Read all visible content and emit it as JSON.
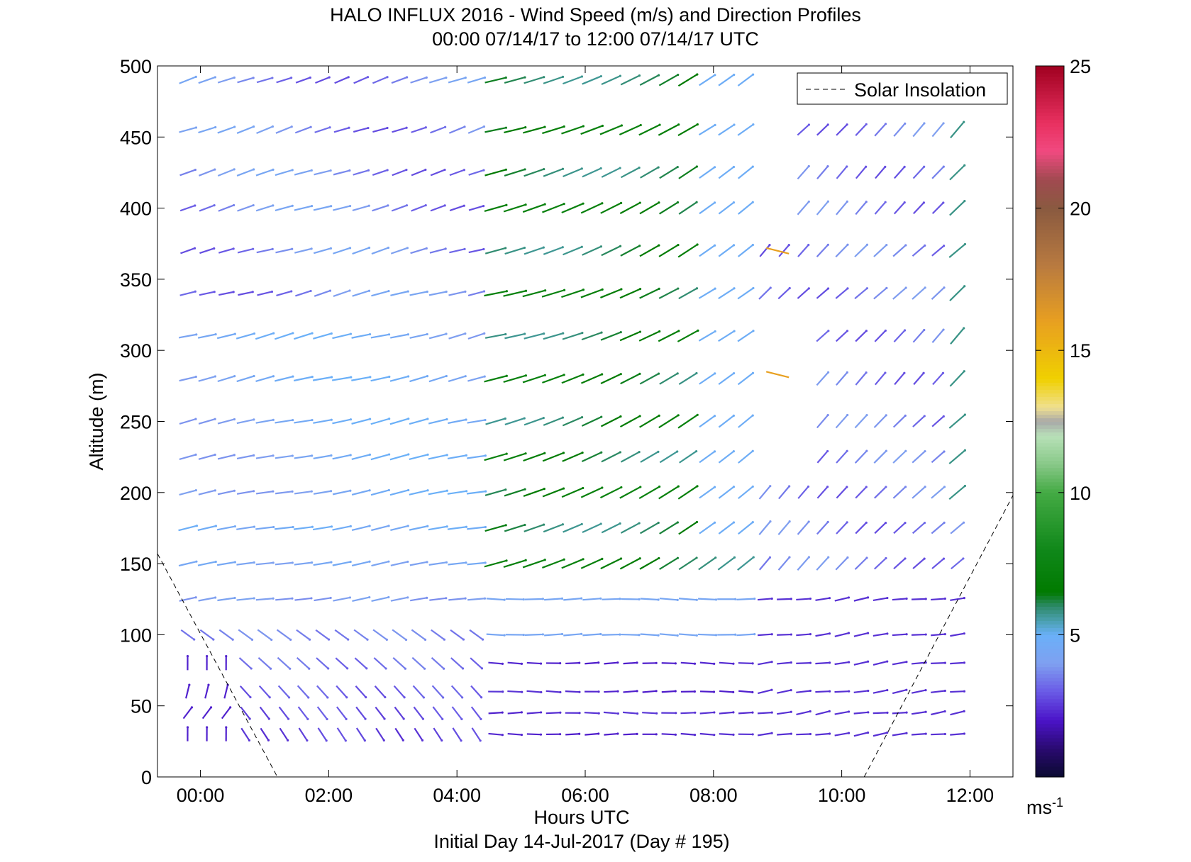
{
  "chart_data": {
    "type": "wind-barb-profile",
    "title": "HALO INFLUX 2016 - Wind Speed (m/s) and Direction Profiles",
    "subtitle": "00:00 07/14/17 to 12:00 07/14/17  UTC",
    "xlabel": "Hours UTC",
    "xlabel2": "Initial Day 14-Jul-2017 (Day # 195)",
    "ylabel": "Altitude (m)",
    "xlim": [
      -0.67,
      12.67
    ],
    "ylim": [
      0,
      500
    ],
    "xticks": [
      0,
      2,
      4,
      6,
      8,
      10,
      12
    ],
    "xtick_labels": [
      "00:00",
      "02:00",
      "04:00",
      "06:00",
      "08:00",
      "10:00",
      "12:00"
    ],
    "yticks": [
      0,
      50,
      100,
      150,
      200,
      250,
      300,
      350,
      400,
      450,
      500
    ],
    "ytick_labels": [
      "0",
      "50",
      "100",
      "150",
      "200",
      "250",
      "300",
      "350",
      "400",
      "450",
      "500"
    ],
    "legend": {
      "label": "Solar Insolation",
      "style": "dashed",
      "position": "top-right"
    },
    "colorbar": {
      "min": 0,
      "max": 25,
      "ticks": [
        5,
        10,
        15,
        20,
        25
      ],
      "tick_labels": [
        "5",
        "10",
        "15",
        "20",
        "25"
      ],
      "unit": "ms",
      "unit_exp": "-1",
      "colors": [
        [
          0,
          "#0a0a30"
        ],
        [
          1,
          "#2a0a70"
        ],
        [
          2,
          "#4b14c8"
        ],
        [
          3,
          "#6a5ae6"
        ],
        [
          4,
          "#7fa0f0"
        ],
        [
          5,
          "#6ab0f8"
        ],
        [
          5.5,
          "#4aa0b0"
        ],
        [
          6,
          "#2e8a6a"
        ],
        [
          6.5,
          "#007a00"
        ],
        [
          8,
          "#10881a"
        ],
        [
          10,
          "#44aa44"
        ],
        [
          11,
          "#88c888"
        ],
        [
          12,
          "#b8e0b8"
        ],
        [
          12.5,
          "#a8a8a8"
        ],
        [
          13,
          "#f0e090"
        ],
        [
          14,
          "#f0d000"
        ],
        [
          16,
          "#e8a020"
        ],
        [
          18,
          "#b87a40"
        ],
        [
          20,
          "#8a5a40"
        ],
        [
          21,
          "#a04a50"
        ],
        [
          22,
          "#f04a80"
        ],
        [
          23,
          "#e83060"
        ],
        [
          25,
          "#a00020"
        ]
      ]
    },
    "solar_insolation": {
      "segments": [
        [
          [
            -0.67,
            157
          ],
          [
            1.2,
            0
          ]
        ],
        [
          [
            10.35,
            0
          ],
          [
            12.67,
            198
          ]
        ]
      ]
    },
    "profiles": {
      "times": [
        -0.2,
        0.1,
        0.4,
        0.7,
        1.0,
        1.3,
        1.6,
        1.9,
        2.2,
        2.5,
        2.8,
        3.1,
        3.4,
        3.7,
        4.0,
        4.3,
        4.6,
        4.9,
        5.2,
        5.5,
        5.8,
        6.1,
        6.4,
        6.7,
        7.0,
        7.3,
        7.6,
        7.9,
        8.2,
        8.5,
        8.8,
        9.1,
        9.4,
        9.7,
        10.0,
        10.3,
        10.6,
        10.9,
        11.2,
        11.5,
        11.8
      ],
      "altitudes": [
        30,
        45,
        60,
        80,
        100,
        125,
        150,
        175,
        200,
        225,
        250,
        280,
        310,
        340,
        370,
        400,
        425,
        455,
        490
      ],
      "description": "wind speed (m/s) and direction (deg, vector pointing to) per time/altitude; null = missing",
      "speed": "generated",
      "direction": "generated"
    }
  }
}
